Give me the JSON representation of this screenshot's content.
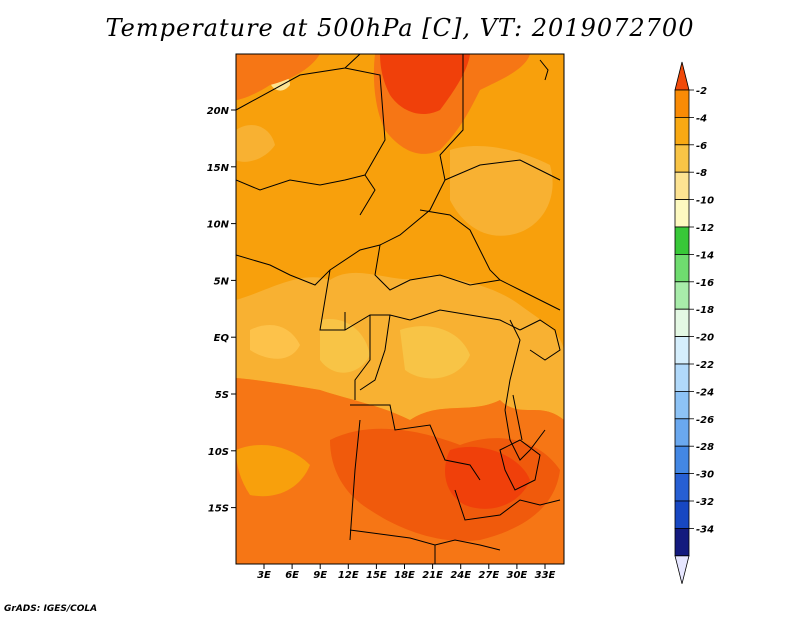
{
  "title": "Temperature at 500hPa [C], VT: 2019072700",
  "credit": "GrADS: IGES/COLA",
  "map": {
    "lat_ticks": [
      "20N",
      "15N",
      "10N",
      "5N",
      "EQ",
      "5S",
      "10S",
      "15S"
    ],
    "lon_ticks": [
      "3E",
      "6E",
      "9E",
      "12E",
      "15E",
      "18E",
      "21E",
      "24E",
      "27E",
      "30E",
      "33E"
    ],
    "lon_range": [
      0,
      35
    ],
    "lat_range": [
      -20,
      25
    ]
  },
  "colorbar": {
    "labels": [
      "-2",
      "-4",
      "-6",
      "-8",
      "-10",
      "-12",
      "-14",
      "-16",
      "-18",
      "-20",
      "-22",
      "-24",
      "-26",
      "-28",
      "-30",
      "-32",
      "-34"
    ],
    "colors": [
      "#f04a0a",
      "#f98b05",
      "#f8a913",
      "#f8c446",
      "#fde392",
      "#fdf9c0",
      "#38c838",
      "#6fdc6f",
      "#a8ecaa",
      "#e4f8e4",
      "#d5eefc",
      "#b1d9fa",
      "#8dc3f6",
      "#6aa8ef",
      "#4387e4",
      "#275fd3",
      "#1747c2",
      "#131a7e",
      "#e6e6ff"
    ]
  },
  "field_colors": {
    "warm_core": "#f0400a",
    "orange_dark": "#f67615",
    "orange": "#f8a00c",
    "orange_light": "#f8b132",
    "pale": "#fde392"
  }
}
